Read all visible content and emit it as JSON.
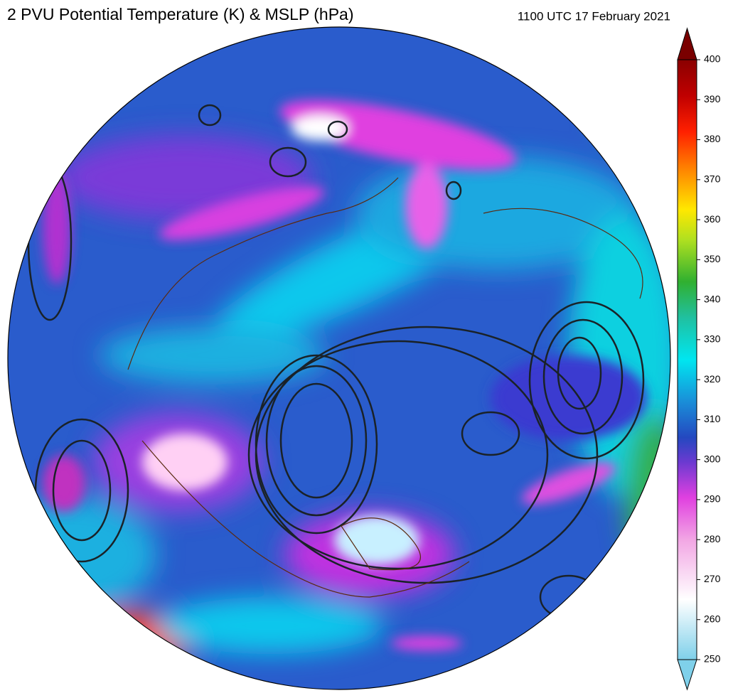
{
  "header": {
    "title": "2 PVU Potential Temperature (K) & MSLP (hPa)",
    "timestamp": "1100 UTC 17 February 2021"
  },
  "colorbar": {
    "vlim": [
      250,
      400
    ],
    "ticks": [
      250,
      260,
      270,
      280,
      290,
      300,
      310,
      320,
      330,
      340,
      350,
      360,
      370,
      380,
      390,
      400
    ]
  }
}
